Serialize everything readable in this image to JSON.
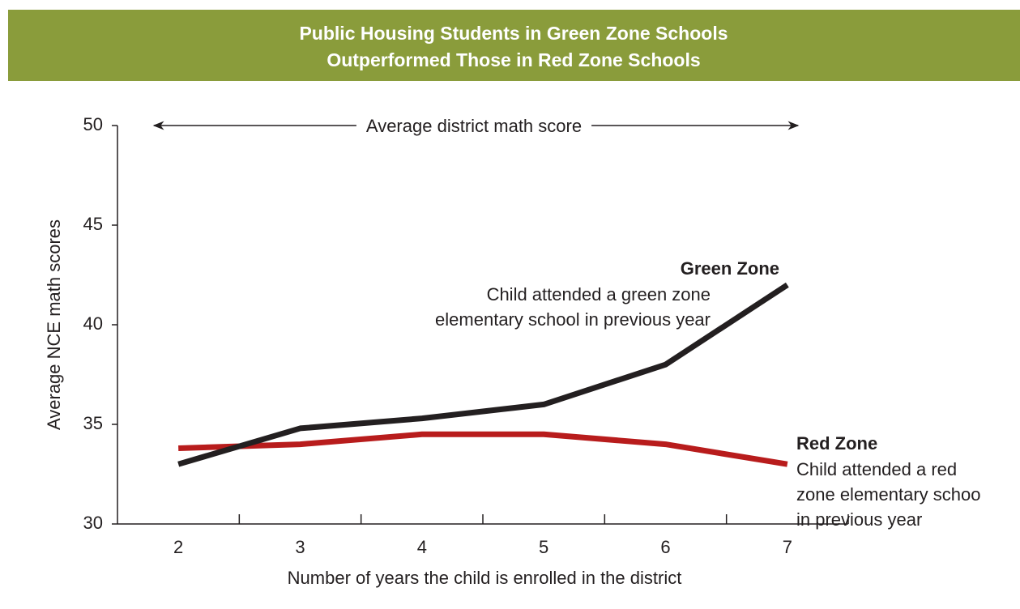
{
  "chart_data": {
    "type": "line",
    "title": [
      "Public Housing Students in Green Zone Schools",
      "Outperformed Those in Red Zone Schools"
    ],
    "xlabel": "Number of years the child is enrolled in the district",
    "ylabel": "Average NCE math scores",
    "categories": [
      "2",
      "3",
      "4",
      "5",
      "6",
      "7"
    ],
    "series": [
      {
        "name": "Green Zone",
        "color": "#231f20",
        "values": [
          33,
          34.8,
          35.3,
          36,
          38,
          42
        ],
        "description": [
          "Child attended a green zone",
          "elementary school in previous year"
        ]
      },
      {
        "name": "Red Zone",
        "color": "#b81c1c",
        "values": [
          33.8,
          34,
          34.5,
          34.5,
          34,
          33
        ],
        "description": [
          "Child attended a red",
          "zone elementary schoo",
          "in previous year"
        ]
      }
    ],
    "reference": {
      "label": "Average district math score",
      "value": 50
    },
    "ylim": [
      30,
      50
    ],
    "yticks": [
      30,
      35,
      40,
      45,
      50
    ]
  }
}
